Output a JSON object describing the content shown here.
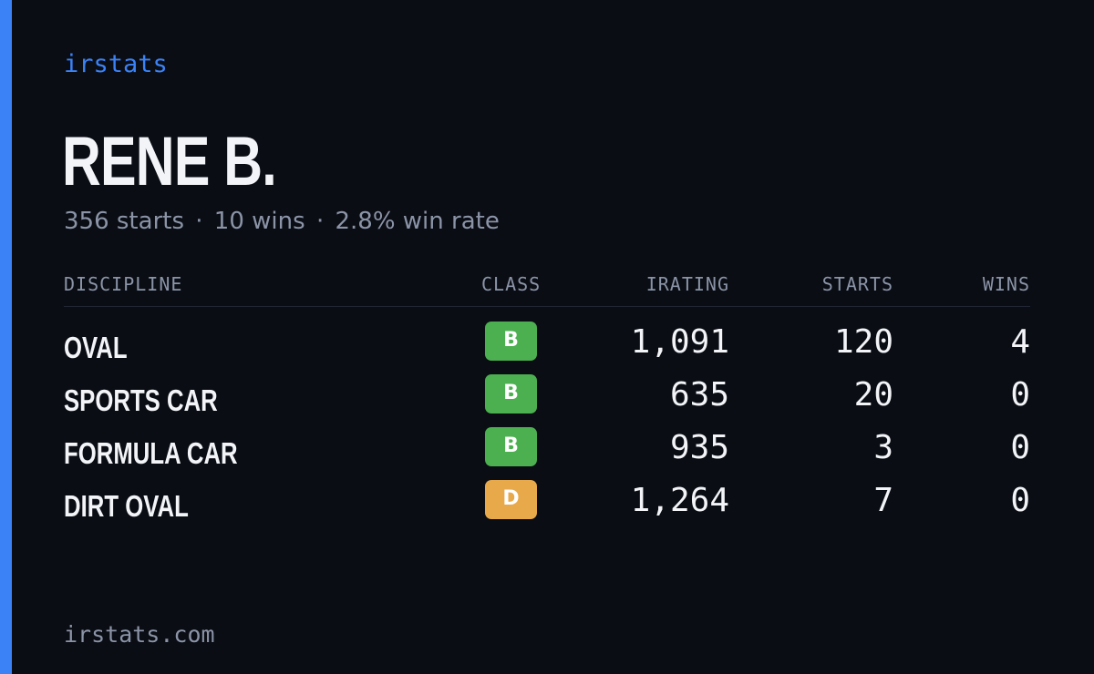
{
  "brand": "irstats",
  "driver": {
    "name": "RENE B.",
    "starts_text": "356 starts",
    "wins_text": "10 wins",
    "win_rate_text": "2.8% win rate",
    "separator": "·"
  },
  "table": {
    "headers": {
      "discipline": "DISCIPLINE",
      "class": "CLASS",
      "irating": "IRATING",
      "starts": "STARTS",
      "wins": "WINS"
    },
    "rows": [
      {
        "discipline": "OVAL",
        "class": "B",
        "irating": "1,091",
        "starts": "120",
        "wins": "4"
      },
      {
        "discipline": "SPORTS CAR",
        "class": "B",
        "irating": "635",
        "starts": "20",
        "wins": "0"
      },
      {
        "discipline": "FORMULA CAR",
        "class": "B",
        "irating": "935",
        "starts": "3",
        "wins": "0"
      },
      {
        "discipline": "DIRT OVAL",
        "class": "D",
        "irating": "1,264",
        "starts": "7",
        "wins": "0"
      }
    ]
  },
  "class_colors": {
    "B": "#4caf50",
    "D": "#e8a94a"
  },
  "colors": {
    "accent": "#3b82f6",
    "background": "#0a0d14",
    "text_primary": "#f2f4f8",
    "text_muted": "#8b94a7"
  },
  "footer": {
    "domain": "irstats.com"
  }
}
